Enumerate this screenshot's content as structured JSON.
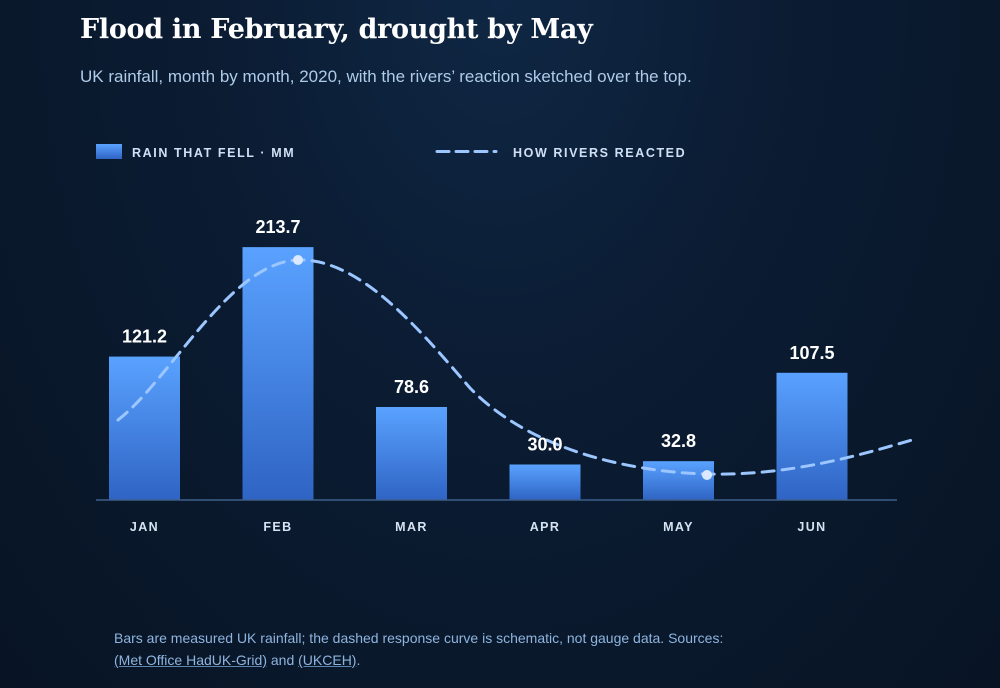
{
  "header": {
    "title": "Flood in February, drought by May",
    "subtitle": "UK rainfall, month by month, 2020, with the rivers’ reaction sketched over the top."
  },
  "chart_data": {
    "type": "bar",
    "categories": [
      "JAN",
      "FEB",
      "MAR",
      "APR",
      "MAY",
      "JUN"
    ],
    "series": [
      {
        "name": "RAIN THAT FELL · MM",
        "values": [
          121.2,
          213.7,
          78.6,
          30.0,
          32.8,
          107.5
        ]
      }
    ],
    "value_labels": [
      "121.2",
      "213.7",
      "78.6",
      "30.0",
      "32.8",
      "107.5"
    ],
    "overlay": {
      "name": "HOW RIVERS REACTED",
      "style": "dashed",
      "schematic": true
    },
    "ylim": [
      0,
      240
    ],
    "legend": "top-left",
    "grid": false
  },
  "colors": {
    "bar_top": "#5aa2ff",
    "bar_bottom": "#2f64c4",
    "curve": "#9cc6ff",
    "axis": "#3d5f8a"
  },
  "footer": {
    "note": "Bars are measured UK rainfall; the dashed response curve is schematic, not gauge data. Sources:",
    "source_1": "(Met Office HadUK-Grid)",
    "joiner": " and ",
    "source_2": "(UKCEH)",
    "end": "."
  }
}
